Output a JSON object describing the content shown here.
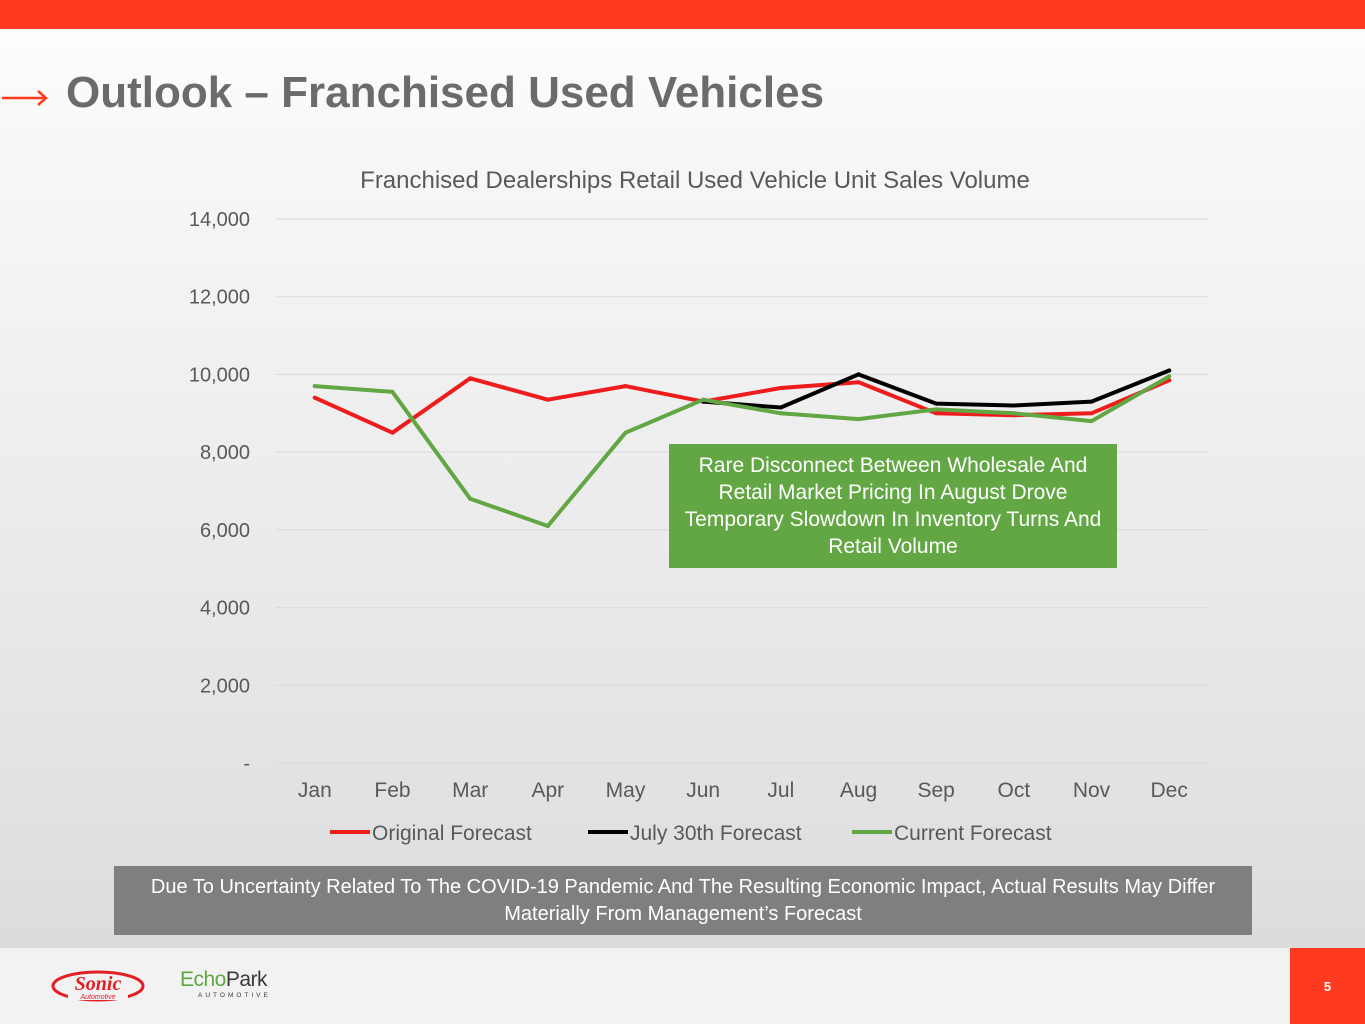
{
  "slide": {
    "title": "Outlook – Franchised Used Vehicles",
    "page_number": "5",
    "accent_color": "#ff3b1f",
    "callout_text": "Rare Disconnect Between Wholesale And Retail Market Pricing In August Drove Temporary Slowdown In Inventory Turns And Retail Volume",
    "disclaimer": "Due To Uncertainty Related To The COVID-19 Pandemic And The Resulting Economic Impact, Actual Results May Differ Materially From Management’s Forecast"
  },
  "logos": {
    "sonic_word": "Sonic",
    "sonic_sub": "Automotive",
    "echo_part1": "Echo",
    "echo_part2": "Park",
    "echo_sub": "AUTOMOTIVE"
  },
  "chart_data": {
    "type": "line",
    "title": "Franchised Dealerships Retail Used Vehicle Unit Sales Volume",
    "categories": [
      "Jan",
      "Feb",
      "Mar",
      "Apr",
      "May",
      "Jun",
      "Jul",
      "Aug",
      "Sep",
      "Oct",
      "Nov",
      "Dec"
    ],
    "ylim": [
      0,
      14000
    ],
    "yticks": [
      0,
      2000,
      4000,
      6000,
      8000,
      10000,
      12000,
      14000
    ],
    "ytick_labels": [
      "-",
      "2,000",
      "4,000",
      "6,000",
      "8,000",
      "10,000",
      "12,000",
      "14,000"
    ],
    "grid": true,
    "legend_position": "bottom",
    "series": [
      {
        "name": "Original Forecast",
        "color": "#ee1c1c",
        "values": [
          9400,
          8500,
          9900,
          9350,
          9700,
          9300,
          9650,
          9800,
          9000,
          8950,
          9000,
          9850
        ]
      },
      {
        "name": "July 30th Forecast",
        "color": "#000000",
        "values": [
          null,
          null,
          null,
          null,
          null,
          9300,
          9150,
          10000,
          9250,
          9200,
          9300,
          10100
        ]
      },
      {
        "name": "Current Forecast",
        "color": "#62a744",
        "values": [
          9700,
          9550,
          6800,
          6100,
          8500,
          9350,
          9000,
          8850,
          9100,
          9000,
          8800,
          9950
        ]
      }
    ]
  }
}
